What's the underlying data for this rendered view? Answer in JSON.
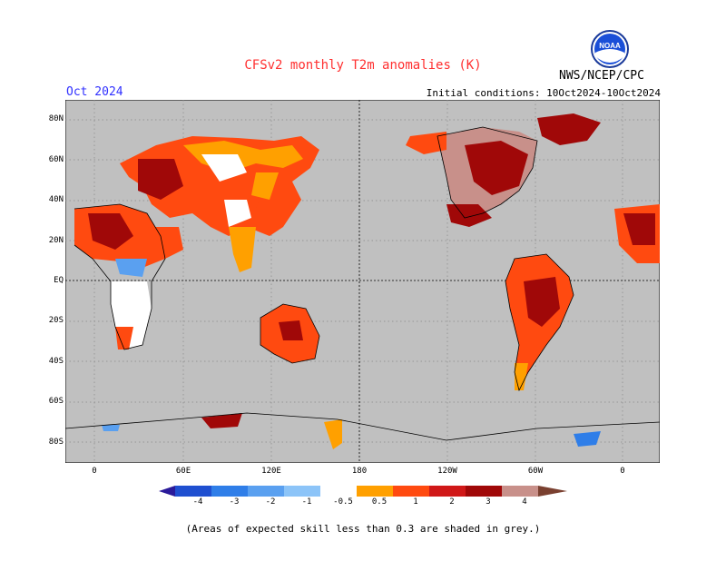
{
  "header": {
    "title": "CFSv2 monthly T2m anomalies (K)",
    "target_month": "Oct 2024",
    "initial_conditions": "Initial conditions: 10Oct2024-10Oct2024",
    "agency": "NWS/NCEP/CPC",
    "logo_text": "NOAA"
  },
  "map": {
    "lat_labels": [
      "80N",
      "60N",
      "40N",
      "20N",
      "EQ",
      "20S",
      "40S",
      "60S",
      "80S"
    ],
    "lon_labels": [
      "0",
      "60E",
      "120E",
      "180",
      "120W",
      "60W",
      "0"
    ],
    "grid": "dotted"
  },
  "colorbar": {
    "labels": [
      "-4",
      "-3",
      "-2",
      "-1",
      "-0.5",
      "0.5",
      "1",
      "2",
      "3",
      "4"
    ],
    "colors": [
      "#2a1a9a",
      "#1f4fd0",
      "#2f7ee8",
      "#5aa0f0",
      "#8cc4f8",
      "#ffffff",
      "#ffa000",
      "#ff4a10",
      "#d01818",
      "#a00808",
      "#c8908a",
      "#7a4030"
    ]
  },
  "footnote": "(Areas of expected skill less than 0.3 are shaded in grey.)"
}
